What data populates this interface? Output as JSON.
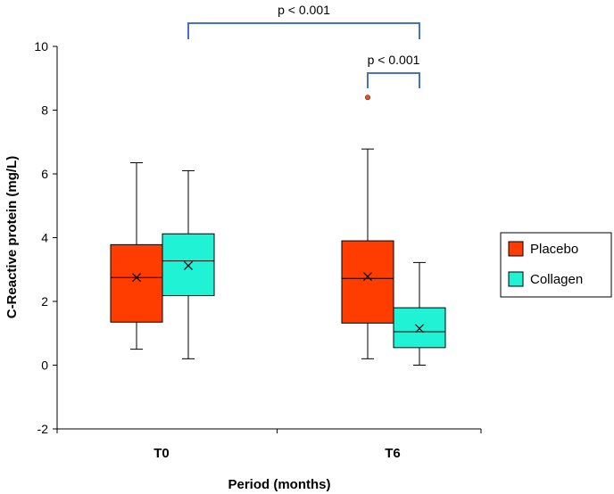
{
  "chart_data": {
    "type": "box",
    "title": "",
    "xlabel": "Period (months)",
    "ylabel": "C-Reactive protein (mg/L)",
    "ylim": [
      -2,
      10
    ],
    "yticks": [
      -2,
      0,
      2,
      4,
      6,
      8,
      10
    ],
    "yticklabels": [
      "-2",
      "0",
      "2",
      "4",
      "6",
      "8",
      "10"
    ],
    "categories": [
      "T0",
      "T6"
    ],
    "legend_position": "right",
    "series": [
      {
        "name": "Placebo",
        "color": "#ff3d00",
        "boxes": [
          {
            "category": "T0",
            "min": 0.5,
            "q1": 1.35,
            "median": 2.75,
            "q3": 3.78,
            "max": 6.35,
            "mean": 2.75,
            "outliers": []
          },
          {
            "category": "T6",
            "min": 0.2,
            "q1": 1.32,
            "median": 2.72,
            "q3": 3.9,
            "max": 6.78,
            "mean": 2.78,
            "outliers": [
              8.4
            ]
          }
        ]
      },
      {
        "name": "Collagen",
        "color": "#1ff2d5",
        "boxes": [
          {
            "category": "T0",
            "min": 0.2,
            "q1": 2.18,
            "median": 3.27,
            "q3": 4.12,
            "max": 6.1,
            "mean": 3.12,
            "outliers": []
          },
          {
            "category": "T6",
            "min": 0.0,
            "q1": 0.55,
            "median": 1.05,
            "q3": 1.8,
            "max": 3.22,
            "mean": 1.15,
            "outliers": []
          }
        ]
      }
    ],
    "significance": [
      {
        "label": "p < 0.001",
        "from": "Collagen T0",
        "to": "Collagen T6"
      },
      {
        "label": "p < 0.001",
        "from": "Placebo T6",
        "to": "Collagen T6"
      }
    ],
    "colors": {
      "axis": "#000000",
      "bracket": "#4472c4",
      "outlier_fill": "#e8542a",
      "outlier_stroke": "#8b2a00"
    }
  }
}
